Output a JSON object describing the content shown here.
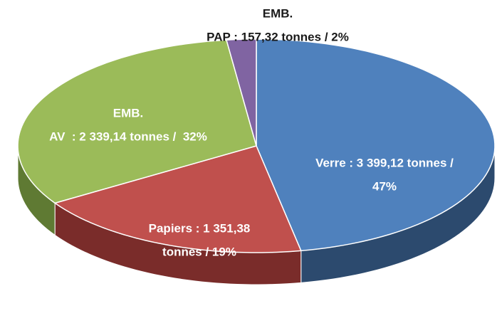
{
  "chart_data": {
    "type": "pie",
    "categories": [
      "Verre",
      "Papiers",
      "EMB. AV",
      "EMB. PAP"
    ],
    "values": [
      47,
      19,
      32,
      2
    ],
    "value_labels": [
      [
        "Verre : 3 399,12 tonnes /",
        "47%"
      ],
      [
        "Papiers : 1 351,38",
        "tonnes / 19%"
      ],
      [
        "EMB.",
        "AV  : 2 339,14 tonnes /  32%"
      ],
      [
        "EMB.",
        "PAP : 157,32 tonnes / 2%"
      ]
    ],
    "colors": [
      "#4f81bd",
      "#c0504d",
      "#9bbb59",
      "#8064a2"
    ],
    "side_colors": [
      "#2c4a6e",
      "#7a2c2a",
      "#5f7a33",
      "#4f3b6b"
    ],
    "label_colors": [
      "#ffffff",
      "#ffffff",
      "#ffffff",
      "#1a1a1a"
    ]
  }
}
